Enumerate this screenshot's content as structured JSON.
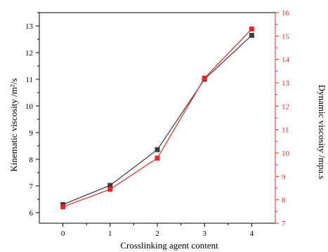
{
  "chart_data": {
    "type": "line",
    "xlabel": "Crosslinking agent content",
    "categories": [
      "0",
      "1",
      "2",
      "3",
      "4"
    ],
    "x": [
      0,
      1,
      2,
      3,
      4
    ],
    "xlim": [
      -0.5,
      4.5
    ],
    "grid": false,
    "legend": "none",
    "left_axis": {
      "label": "Kinematic viscosity /m²/s",
      "ylim": [
        5.6,
        13.5
      ],
      "ticks": [
        6,
        7,
        8,
        9,
        10,
        11,
        12,
        13
      ],
      "color": "#000000"
    },
    "right_axis": {
      "label": "Dynamic viscosity /mpa.s",
      "ylim": [
        7.0,
        16.0
      ],
      "ticks": [
        7,
        8,
        9,
        10,
        11,
        12,
        13,
        14,
        15,
        16
      ],
      "color": "#e8262b"
    },
    "series": [
      {
        "axis": "left",
        "color": "#3a3a3a",
        "marker": "square",
        "values": [
          6.3,
          7.02,
          8.36,
          11.0,
          12.65
        ]
      },
      {
        "axis": "right",
        "color": "#e8262b",
        "marker": "square",
        "values": [
          7.7,
          8.45,
          9.78,
          13.2,
          15.3
        ]
      }
    ]
  }
}
